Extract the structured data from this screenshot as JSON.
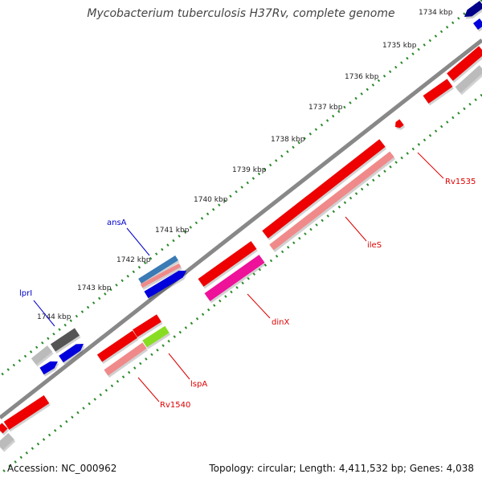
{
  "title": "Mycobacterium tuberculosis H37Rv, complete genome",
  "accession": "Accession: NC_000962",
  "summary": "Topology: circular; Length: 4,411,532 bp; Genes: 4,038",
  "ticks": [
    "1734 kbp",
    "1735 kbp",
    "1736 kbp",
    "1737 kbp",
    "1738 kbp",
    "1739 kbp",
    "1740 kbp",
    "1741 kbp",
    "1742 kbp",
    "1743 kbp",
    "1744 kbp"
  ],
  "gene_labels": [
    {
      "name": "Rv1535",
      "color": "#dd0000"
    },
    {
      "name": "ileS",
      "color": "#dd0000"
    },
    {
      "name": "dinX",
      "color": "#dd0000"
    },
    {
      "name": "lspA",
      "color": "#dd0000"
    },
    {
      "name": "Rv1540",
      "color": "#dd0000"
    },
    {
      "name": "ansA",
      "color": "#0000cc"
    },
    {
      "name": "lprI",
      "color": "#0000cc"
    }
  ],
  "colors": {
    "backbone": "#888888",
    "tick_dots": "#2a8a2a",
    "gene_red": "#ee0000",
    "gene_pink": "#f08a8a",
    "gene_magenta": "#ee1199",
    "gene_blue": "#0000dd",
    "gene_navy": "#000088",
    "gene_gray": "#bbbbbb",
    "gene_darkgray": "#555555",
    "gene_steelblue": "#3a7ab5",
    "gene_green": "#88dd22"
  }
}
